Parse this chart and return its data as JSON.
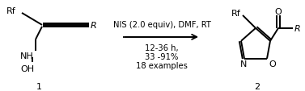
{
  "bg_color": "#ffffff",
  "text_color": "#000000",
  "above_arrow": "NIS (2.0 equiv), DMF, RT",
  "below_arrow_lines": [
    "12-36 h,",
    "33 -91%",
    "18 examples"
  ],
  "label_1": "1",
  "label_2": "2",
  "fig_width": 3.77,
  "fig_height": 1.14,
  "dpi": 100
}
